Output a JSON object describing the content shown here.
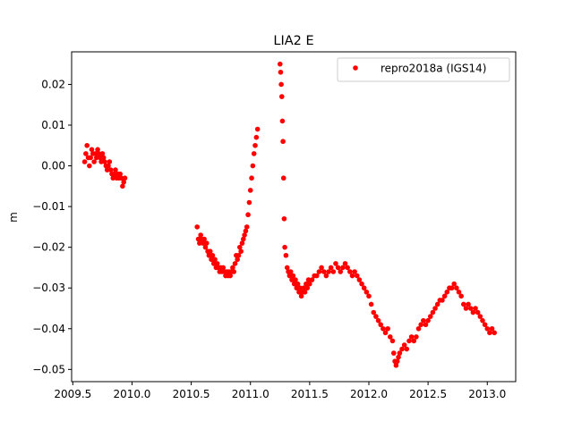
{
  "chart_data": {
    "type": "scatter",
    "title": "LIA2 E",
    "ylabel": "m",
    "xlabel": "",
    "xlim": [
      2009.49,
      2013.24
    ],
    "ylim": [
      -0.053,
      0.028
    ],
    "xticks": [
      2009.5,
      2010.0,
      2010.5,
      2011.0,
      2011.5,
      2012.0,
      2012.5,
      2013.0
    ],
    "xtick_labels": [
      "2009.5",
      "2010.0",
      "2010.5",
      "2011.0",
      "2011.5",
      "2012.0",
      "2012.5",
      "2013.0"
    ],
    "yticks": [
      0.02,
      0.01,
      0.0,
      -0.01,
      -0.02,
      -0.03,
      -0.04,
      -0.05
    ],
    "ytick_labels": [
      "0.02",
      "0.01",
      "0.00",
      "−0.01",
      "−0.02",
      "−0.03",
      "−0.04",
      "−0.05"
    ],
    "grid": false,
    "legend_position": "upper right",
    "series": [
      {
        "name": "repro2018a (IGS14)",
        "color": "#ff0000",
        "marker": "dot",
        "points": [
          [
            2009.6,
            0.001
          ],
          [
            2009.61,
            0.003
          ],
          [
            2009.62,
            0.005
          ],
          [
            2009.63,
            0.002
          ],
          [
            2009.64,
            0.0
          ],
          [
            2009.65,
            0.002
          ],
          [
            2009.66,
            0.004
          ],
          [
            2009.67,
            0.003
          ],
          [
            2009.68,
            0.001
          ],
          [
            2009.69,
            0.003
          ],
          [
            2009.7,
            0.002
          ],
          [
            2009.71,
            0.004
          ],
          [
            2009.72,
            0.003
          ],
          [
            2009.73,
            0.002
          ],
          [
            2009.74,
            0.001
          ],
          [
            2009.75,
            0.003
          ],
          [
            2009.76,
            0.002
          ],
          [
            2009.77,
            0.001
          ],
          [
            2009.78,
            0.0
          ],
          [
            2009.79,
            -0.001
          ],
          [
            2009.8,
            0.0
          ],
          [
            2009.81,
            0.001
          ],
          [
            2009.82,
            -0.001
          ],
          [
            2009.83,
            -0.002
          ],
          [
            2009.84,
            -0.003
          ],
          [
            2009.85,
            -0.002
          ],
          [
            2009.86,
            -0.001
          ],
          [
            2009.87,
            -0.003
          ],
          [
            2009.88,
            -0.002
          ],
          [
            2009.89,
            -0.003
          ],
          [
            2009.9,
            -0.002
          ],
          [
            2009.91,
            -0.003
          ],
          [
            2009.92,
            -0.005
          ],
          [
            2009.93,
            -0.004
          ],
          [
            2009.94,
            -0.003
          ],
          [
            2010.55,
            -0.015
          ],
          [
            2010.56,
            -0.018
          ],
          [
            2010.57,
            -0.019
          ],
          [
            2010.58,
            -0.017
          ],
          [
            2010.59,
            -0.018
          ],
          [
            2010.6,
            -0.019
          ],
          [
            2010.61,
            -0.018
          ],
          [
            2010.62,
            -0.02
          ],
          [
            2010.63,
            -0.019
          ],
          [
            2010.64,
            -0.021
          ],
          [
            2010.65,
            -0.022
          ],
          [
            2010.66,
            -0.021
          ],
          [
            2010.67,
            -0.023
          ],
          [
            2010.68,
            -0.022
          ],
          [
            2010.69,
            -0.024
          ],
          [
            2010.7,
            -0.023
          ],
          [
            2010.71,
            -0.025
          ],
          [
            2010.72,
            -0.024
          ],
          [
            2010.73,
            -0.025
          ],
          [
            2010.74,
            -0.026
          ],
          [
            2010.75,
            -0.025
          ],
          [
            2010.76,
            -0.026
          ],
          [
            2010.77,
            -0.025
          ],
          [
            2010.78,
            -0.026
          ],
          [
            2010.79,
            -0.027
          ],
          [
            2010.8,
            -0.026
          ],
          [
            2010.81,
            -0.027
          ],
          [
            2010.82,
            -0.026
          ],
          [
            2010.83,
            -0.027
          ],
          [
            2010.84,
            -0.026
          ],
          [
            2010.85,
            -0.025
          ],
          [
            2010.86,
            -0.026
          ],
          [
            2010.87,
            -0.024
          ],
          [
            2010.88,
            -0.022
          ],
          [
            2010.89,
            -0.023
          ],
          [
            2010.9,
            -0.022
          ],
          [
            2010.91,
            -0.02
          ],
          [
            2010.92,
            -0.021
          ],
          [
            2010.93,
            -0.019
          ],
          [
            2010.94,
            -0.018
          ],
          [
            2010.95,
            -0.017
          ],
          [
            2010.96,
            -0.016
          ],
          [
            2010.97,
            -0.015
          ],
          [
            2010.98,
            -0.012
          ],
          [
            2010.99,
            -0.009
          ],
          [
            2011.0,
            -0.006
          ],
          [
            2011.01,
            -0.003
          ],
          [
            2011.02,
            0.0
          ],
          [
            2011.03,
            0.003
          ],
          [
            2011.04,
            0.005
          ],
          [
            2011.05,
            0.007
          ],
          [
            2011.06,
            0.009
          ],
          [
            2011.25,
            0.025
          ],
          [
            2011.255,
            0.023
          ],
          [
            2011.26,
            0.02
          ],
          [
            2011.265,
            0.017
          ],
          [
            2011.27,
            0.011
          ],
          [
            2011.275,
            0.006
          ],
          [
            2011.28,
            -0.003
          ],
          [
            2011.285,
            -0.013
          ],
          [
            2011.29,
            -0.02
          ],
          [
            2011.3,
            -0.022
          ],
          [
            2011.31,
            -0.025
          ],
          [
            2011.32,
            -0.026
          ],
          [
            2011.33,
            -0.027
          ],
          [
            2011.34,
            -0.026
          ],
          [
            2011.35,
            -0.028
          ],
          [
            2011.36,
            -0.027
          ],
          [
            2011.37,
            -0.029
          ],
          [
            2011.38,
            -0.028
          ],
          [
            2011.39,
            -0.03
          ],
          [
            2011.4,
            -0.029
          ],
          [
            2011.41,
            -0.031
          ],
          [
            2011.42,
            -0.03
          ],
          [
            2011.43,
            -0.032
          ],
          [
            2011.44,
            -0.031
          ],
          [
            2011.45,
            -0.03
          ],
          [
            2011.46,
            -0.031
          ],
          [
            2011.47,
            -0.029
          ],
          [
            2011.48,
            -0.03
          ],
          [
            2011.49,
            -0.028
          ],
          [
            2011.5,
            -0.029
          ],
          [
            2011.52,
            -0.028
          ],
          [
            2011.54,
            -0.027
          ],
          [
            2011.56,
            -0.027
          ],
          [
            2011.58,
            -0.026
          ],
          [
            2011.6,
            -0.025
          ],
          [
            2011.62,
            -0.026
          ],
          [
            2011.64,
            -0.027
          ],
          [
            2011.66,
            -0.026
          ],
          [
            2011.68,
            -0.025
          ],
          [
            2011.7,
            -0.026
          ],
          [
            2011.72,
            -0.024
          ],
          [
            2011.74,
            -0.025
          ],
          [
            2011.76,
            -0.026
          ],
          [
            2011.78,
            -0.025
          ],
          [
            2011.8,
            -0.024
          ],
          [
            2011.82,
            -0.025
          ],
          [
            2011.84,
            -0.026
          ],
          [
            2011.86,
            -0.027
          ],
          [
            2011.88,
            -0.026
          ],
          [
            2011.9,
            -0.027
          ],
          [
            2011.92,
            -0.028
          ],
          [
            2011.94,
            -0.029
          ],
          [
            2011.96,
            -0.03
          ],
          [
            2011.98,
            -0.031
          ],
          [
            2012.0,
            -0.032
          ],
          [
            2012.02,
            -0.034
          ],
          [
            2012.04,
            -0.036
          ],
          [
            2012.06,
            -0.037
          ],
          [
            2012.08,
            -0.038
          ],
          [
            2012.1,
            -0.039
          ],
          [
            2012.12,
            -0.04
          ],
          [
            2012.14,
            -0.041
          ],
          [
            2012.16,
            -0.04
          ],
          [
            2012.18,
            -0.042
          ],
          [
            2012.2,
            -0.043
          ],
          [
            2012.21,
            -0.046
          ],
          [
            2012.22,
            -0.048
          ],
          [
            2012.23,
            -0.049
          ],
          [
            2012.24,
            -0.048
          ],
          [
            2012.25,
            -0.047
          ],
          [
            2012.26,
            -0.046
          ],
          [
            2012.28,
            -0.045
          ],
          [
            2012.3,
            -0.044
          ],
          [
            2012.32,
            -0.045
          ],
          [
            2012.34,
            -0.043
          ],
          [
            2012.36,
            -0.042
          ],
          [
            2012.38,
            -0.043
          ],
          [
            2012.4,
            -0.042
          ],
          [
            2012.42,
            -0.04
          ],
          [
            2012.44,
            -0.039
          ],
          [
            2012.46,
            -0.038
          ],
          [
            2012.48,
            -0.039
          ],
          [
            2012.5,
            -0.038
          ],
          [
            2012.52,
            -0.037
          ],
          [
            2012.54,
            -0.036
          ],
          [
            2012.56,
            -0.035
          ],
          [
            2012.58,
            -0.034
          ],
          [
            2012.6,
            -0.033
          ],
          [
            2012.62,
            -0.033
          ],
          [
            2012.64,
            -0.032
          ],
          [
            2012.66,
            -0.031
          ],
          [
            2012.68,
            -0.03
          ],
          [
            2012.7,
            -0.03
          ],
          [
            2012.72,
            -0.029
          ],
          [
            2012.74,
            -0.03
          ],
          [
            2012.76,
            -0.031
          ],
          [
            2012.78,
            -0.032
          ],
          [
            2012.8,
            -0.034
          ],
          [
            2012.82,
            -0.035
          ],
          [
            2012.84,
            -0.034
          ],
          [
            2012.86,
            -0.035
          ],
          [
            2012.88,
            -0.036
          ],
          [
            2012.9,
            -0.035
          ],
          [
            2012.92,
            -0.036
          ],
          [
            2012.94,
            -0.037
          ],
          [
            2012.96,
            -0.038
          ],
          [
            2012.98,
            -0.039
          ],
          [
            2013.0,
            -0.04
          ],
          [
            2013.02,
            -0.041
          ],
          [
            2013.04,
            -0.04
          ],
          [
            2013.06,
            -0.041
          ]
        ]
      }
    ]
  }
}
